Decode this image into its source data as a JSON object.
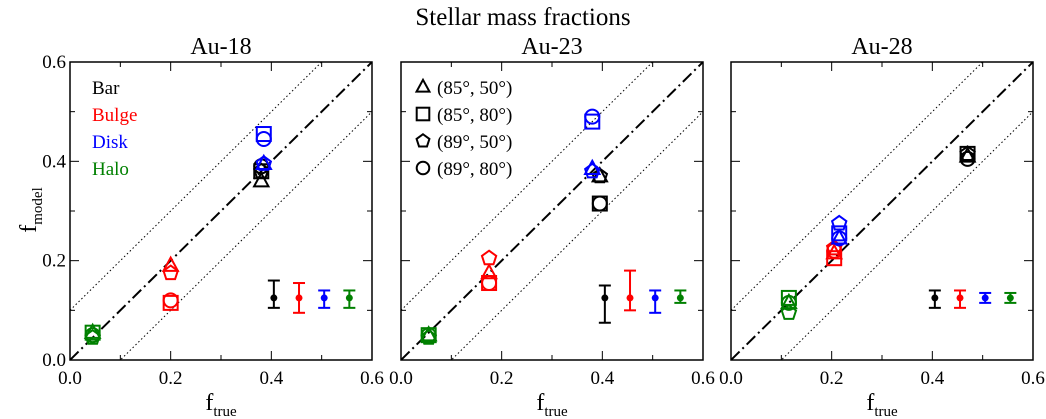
{
  "chart_data": {
    "type": "scatter",
    "title": "Stellar mass fractions",
    "xlabel": "f",
    "xlabel_sub": "true",
    "ylabel": "f",
    "ylabel_sub": "model",
    "xlim": [
      0.0,
      0.6
    ],
    "ylim": [
      0.0,
      0.6
    ],
    "xticks": [
      "0.0",
      "0.2",
      "0.4",
      "0.6"
    ],
    "yticks": [
      "0.0",
      "0.2",
      "0.4",
      "0.6"
    ],
    "reference_lines": [
      {
        "name": "one-to-one",
        "style": "dash-dot",
        "offset": 0.0
      },
      {
        "name": "plus-0.1",
        "style": "dotted",
        "offset": 0.1
      },
      {
        "name": "minus-0.1",
        "style": "dotted",
        "offset": -0.1
      }
    ],
    "components": [
      {
        "name": "Bar",
        "color": "#000000"
      },
      {
        "name": "Bulge",
        "color": "#ff0000"
      },
      {
        "name": "Disk",
        "color": "#0000ff"
      },
      {
        "name": "Halo",
        "color": "#008000"
      }
    ],
    "markers": [
      {
        "label": "(85°, 50°)",
        "shape": "triangle"
      },
      {
        "label": "(85°, 80°)",
        "shape": "square"
      },
      {
        "label": "(89°, 50°)",
        "shape": "pentagon"
      },
      {
        "label": "(89°, 80°)",
        "shape": "circle"
      }
    ],
    "panels": [
      {
        "title": "Au-18",
        "points": [
          {
            "component": "Bar",
            "x": 0.38,
            "values": [
              0.36,
              0.38,
              0.38,
              0.39
            ]
          },
          {
            "component": "Bulge",
            "x": 0.2,
            "values": [
              0.19,
              0.115,
              0.175,
              0.12
            ]
          },
          {
            "component": "Disk",
            "x": 0.385,
            "values": [
              0.395,
              0.455,
              0.395,
              0.445
            ]
          },
          {
            "component": "Halo",
            "x": 0.045,
            "values": [
              0.055,
              0.055,
              0.045,
              0.05
            ]
          }
        ],
        "errorbars": [
          {
            "component": "Bar",
            "x": 0.405,
            "y": 0.125,
            "ylo": 0.105,
            "yhi": 0.16
          },
          {
            "component": "Bulge",
            "x": 0.455,
            "y": 0.125,
            "ylo": 0.095,
            "yhi": 0.155
          },
          {
            "component": "Disk",
            "x": 0.505,
            "y": 0.125,
            "ylo": 0.105,
            "yhi": 0.14
          },
          {
            "component": "Halo",
            "x": 0.555,
            "y": 0.125,
            "ylo": 0.105,
            "yhi": 0.14
          }
        ]
      },
      {
        "title": "Au-23",
        "points": [
          {
            "component": "Bar",
            "x": 0.395,
            "values": [
              0.37,
              0.315,
              0.37,
              0.315
            ]
          },
          {
            "component": "Bulge",
            "x": 0.175,
            "values": [
              0.175,
              0.155,
              0.205,
              0.155
            ]
          },
          {
            "component": "Disk",
            "x": 0.38,
            "values": [
              0.385,
              0.48,
              0.38,
              0.49
            ]
          },
          {
            "component": "Halo",
            "x": 0.055,
            "values": [
              0.05,
              0.05,
              0.045,
              0.05
            ]
          }
        ],
        "errorbars": [
          {
            "component": "Bar",
            "x": 0.405,
            "y": 0.125,
            "ylo": 0.075,
            "yhi": 0.15
          },
          {
            "component": "Bulge",
            "x": 0.455,
            "y": 0.125,
            "ylo": 0.1,
            "yhi": 0.18
          },
          {
            "component": "Disk",
            "x": 0.505,
            "y": 0.125,
            "ylo": 0.095,
            "yhi": 0.14
          },
          {
            "component": "Halo",
            "x": 0.555,
            "y": 0.125,
            "ylo": 0.115,
            "yhi": 0.14
          }
        ]
      },
      {
        "title": "Au-28",
        "points": [
          {
            "component": "Bar",
            "x": 0.47,
            "values": [
              0.41,
              0.415,
              0.415,
              0.405
            ]
          },
          {
            "component": "Bulge",
            "x": 0.205,
            "values": [
              0.215,
              0.205,
              0.225,
              0.22
            ]
          },
          {
            "component": "Disk",
            "x": 0.215,
            "values": [
              0.245,
              0.255,
              0.275,
              0.245
            ]
          },
          {
            "component": "Halo",
            "x": 0.115,
            "values": [
              0.115,
              0.125,
              0.095,
              0.115
            ]
          }
        ],
        "errorbars": [
          {
            "component": "Bar",
            "x": 0.405,
            "y": 0.125,
            "ylo": 0.105,
            "yhi": 0.14
          },
          {
            "component": "Bulge",
            "x": 0.455,
            "y": 0.125,
            "ylo": 0.105,
            "yhi": 0.14
          },
          {
            "component": "Disk",
            "x": 0.505,
            "y": 0.125,
            "ylo": 0.115,
            "yhi": 0.135
          },
          {
            "component": "Halo",
            "x": 0.555,
            "y": 0.125,
            "ylo": 0.115,
            "yhi": 0.135
          }
        ]
      }
    ]
  }
}
